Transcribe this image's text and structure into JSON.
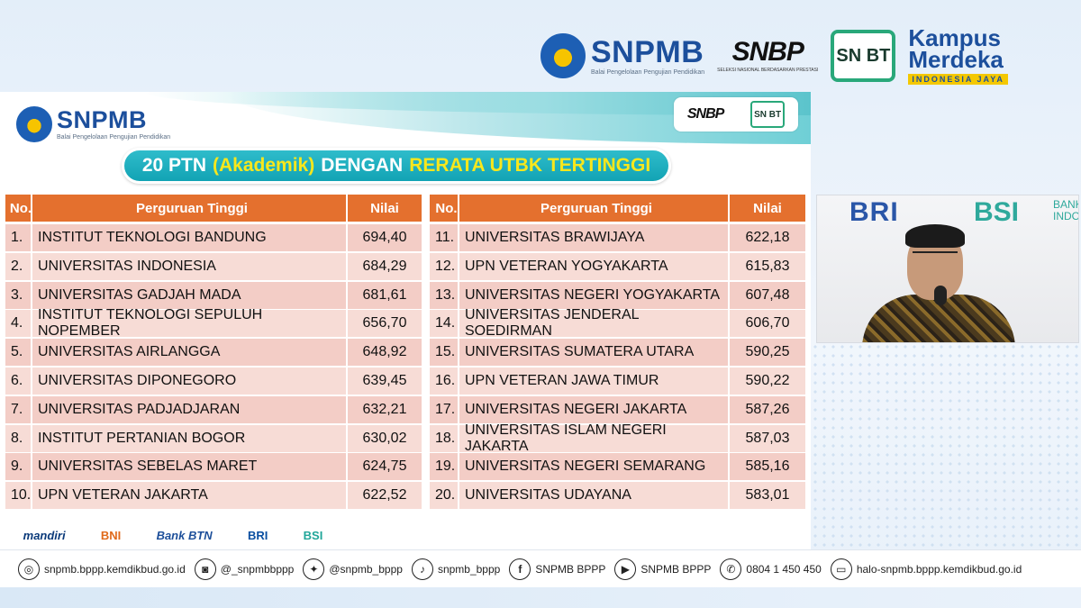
{
  "header_logos": {
    "snpmb": "SNPMB",
    "snpmb_sub": "Balai Pengelolaan Pengujian Pendidikan",
    "snbp": "SNBP",
    "snbp_sub": "SELEKSI NASIONAL BERDASARKAN PRESTASI",
    "snbt": "SN BT",
    "kampus_line1": "Kampus",
    "kampus_line2": "Merdeka",
    "kampus_line3": "INDONESIA JAYA"
  },
  "slide": {
    "logo_text": "SNPMB",
    "logo_sub": "Balai Pengelolaan Pengujian Pendidikan",
    "corner_snbp": "SNBP",
    "corner_snbt": "SN BT",
    "title_part1": "20 PTN",
    "title_part2": "(Akademik)",
    "title_part3": "DENGAN",
    "title_part4": "RERATA UTBK TERTINGGI",
    "headers": {
      "no": "No.",
      "name": "Perguruan Tinggi",
      "value": "Nilai"
    },
    "left_rows": [
      {
        "no": "1.",
        "name": "INSTITUT TEKNOLOGI BANDUNG",
        "value": "694,40"
      },
      {
        "no": "2.",
        "name": "UNIVERSITAS INDONESIA",
        "value": "684,29"
      },
      {
        "no": "3.",
        "name": "UNIVERSITAS GADJAH MADA",
        "value": "681,61"
      },
      {
        "no": "4.",
        "name": "INSTITUT TEKNOLOGI SEPULUH NOPEMBER",
        "value": "656,70"
      },
      {
        "no": "5.",
        "name": "UNIVERSITAS AIRLANGGA",
        "value": "648,92"
      },
      {
        "no": "6.",
        "name": "UNIVERSITAS DIPONEGORO",
        "value": "639,45"
      },
      {
        "no": "7.",
        "name": "UNIVERSITAS PADJADJARAN",
        "value": "632,21"
      },
      {
        "no": "8.",
        "name": "INSTITUT PERTANIAN BOGOR",
        "value": "630,02"
      },
      {
        "no": "9.",
        "name": "UNIVERSITAS SEBELAS MARET",
        "value": "624,75"
      },
      {
        "no": "10.",
        "name": "UPN VETERAN JAKARTA",
        "value": "622,52"
      }
    ],
    "right_rows": [
      {
        "no": "11.",
        "name": "UNIVERSITAS BRAWIJAYA",
        "value": "622,18"
      },
      {
        "no": "12.",
        "name": "UPN VETERAN YOGYAKARTA",
        "value": "615,83"
      },
      {
        "no": "13.",
        "name": "UNIVERSITAS NEGERI YOGYAKARTA",
        "value": "607,48"
      },
      {
        "no": "14.",
        "name": "UNIVERSITAS JENDERAL SOEDIRMAN",
        "value": "606,70"
      },
      {
        "no": "15.",
        "name": "UNIVERSITAS SUMATERA UTARA",
        "value": "590,25"
      },
      {
        "no": "16.",
        "name": "UPN VETERAN JAWA TIMUR",
        "value": "590,22"
      },
      {
        "no": "17.",
        "name": "UNIVERSITAS NEGERI JAKARTA",
        "value": "587,26"
      },
      {
        "no": "18.",
        "name": "UNIVERSITAS ISLAM NEGERI JAKARTA",
        "value": "587,03"
      },
      {
        "no": "19.",
        "name": "UNIVERSITAS NEGERI SEMARANG",
        "value": "585,16"
      },
      {
        "no": "20.",
        "name": "UNIVERSITAS UDAYANA",
        "value": "583,01"
      }
    ],
    "sponsors": [
      "mandiri",
      "BNI",
      "Bank BTN",
      "BRI",
      "BSI"
    ]
  },
  "webcam": {
    "backdrop_bri": "BRI",
    "backdrop_bsi": "BSI",
    "backdrop_bank": "BANK INDO"
  },
  "contacts": [
    {
      "icon": "globe-icon",
      "glyph": "◎",
      "text": "snpmb.bppp.kemdikbud.go.id"
    },
    {
      "icon": "instagram-icon",
      "glyph": "◙",
      "text": "@_snpmbbppp"
    },
    {
      "icon": "twitter-icon",
      "glyph": "✦",
      "text": "@snpmb_bppp"
    },
    {
      "icon": "tiktok-icon",
      "glyph": "♪",
      "text": "snpmb_bppp"
    },
    {
      "icon": "facebook-icon",
      "glyph": "f",
      "text": "SNPMB BPPP"
    },
    {
      "icon": "youtube-icon",
      "glyph": "▶",
      "text": "SNPMB BPPP"
    },
    {
      "icon": "phone-icon",
      "glyph": "✆",
      "text": "0804 1 450 450"
    },
    {
      "icon": "laptop-icon",
      "glyph": "▭",
      "text": "halo-snpmb.bppp.kemdikbud.go.id"
    }
  ],
  "colors": {
    "header_orange": "#e4702e",
    "row_pink": "#f7dcd6",
    "banner_teal": "#12a3b4",
    "accent_yellow": "#f8e71c",
    "brand_blue": "#1c4f9c"
  }
}
